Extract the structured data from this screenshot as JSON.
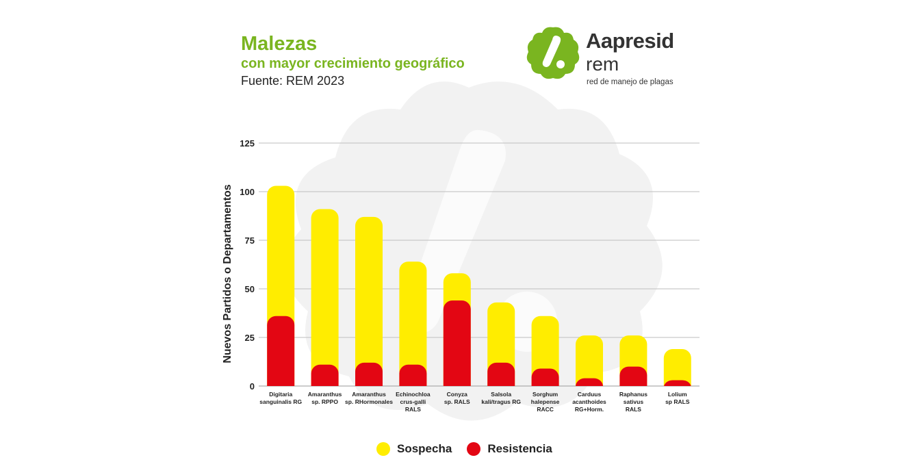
{
  "header": {
    "title": "Malezas",
    "subtitle": "con mayor crecimiento geográfico",
    "source": "Fuente: REM 2023"
  },
  "logo": {
    "name": "Aapresid",
    "sub": "rem",
    "tagline": "red de manejo de plagas",
    "color": "#7ab520"
  },
  "chart_data": {
    "type": "bar",
    "stacked": true,
    "title": "",
    "xlabel": "",
    "ylabel": "Nuevos Partidos o Departamentos",
    "ylim": [
      0,
      125
    ],
    "yticks": [
      0,
      25,
      50,
      75,
      100,
      125
    ],
    "grid": true,
    "categories": [
      [
        "Digitaria",
        "sanguinalis RG"
      ],
      [
        "Amaranthus",
        "sp. RPPO"
      ],
      [
        "Amaranthus",
        "sp. RHormonales"
      ],
      [
        "Echinochloa",
        "crus-galli",
        "RALS"
      ],
      [
        "Conyza",
        "sp. RALS"
      ],
      [
        "Salsola",
        "kali/tragus RG"
      ],
      [
        "Sorghum",
        "halepense",
        "RACC"
      ],
      [
        "Carduus",
        "acanthoides",
        "RG+Horm."
      ],
      [
        "Raphanus",
        "sativus",
        "RALS"
      ],
      [
        "Lolium",
        "sp RALS"
      ]
    ],
    "series": [
      {
        "name": "Resistencia",
        "color": "#e30613",
        "values": [
          36,
          11,
          12,
          11,
          44,
          12,
          9,
          4,
          10,
          3
        ]
      },
      {
        "name": "Sospecha",
        "color": "#ffed00",
        "values": [
          67,
          80,
          75,
          53,
          14,
          31,
          27,
          22,
          16,
          16
        ]
      }
    ],
    "legend": {
      "position": "bottom-center",
      "order": [
        "Sospecha",
        "Resistencia"
      ]
    }
  }
}
